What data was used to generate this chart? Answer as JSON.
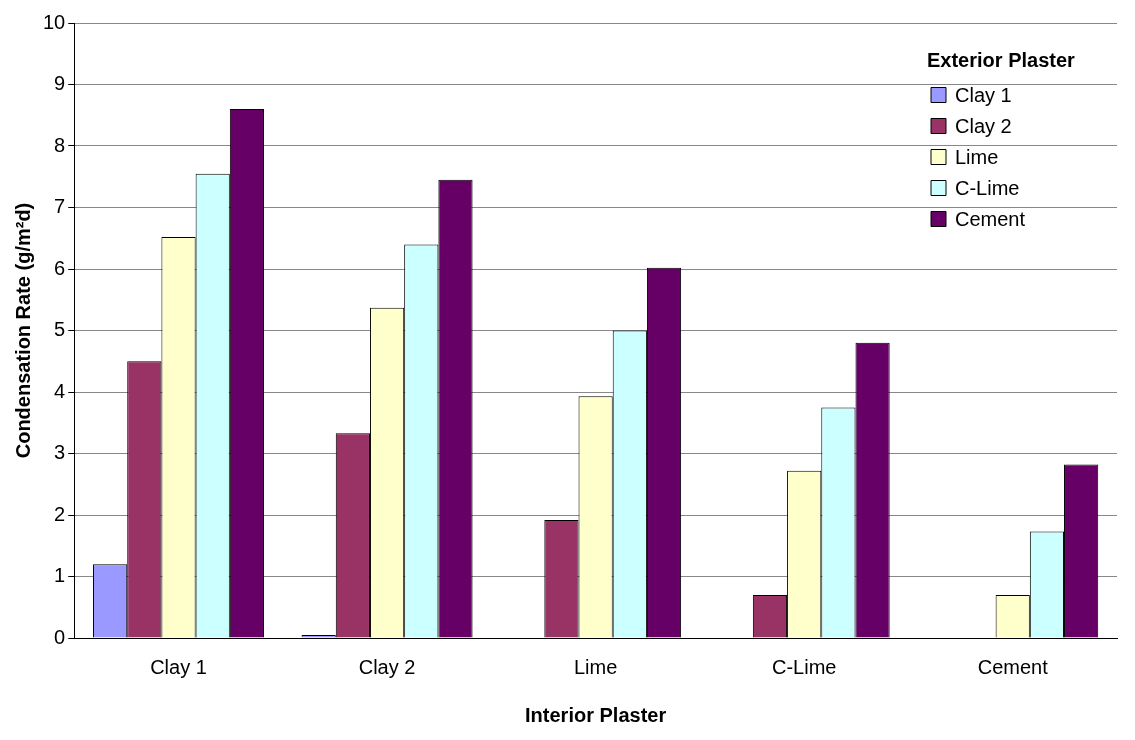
{
  "chart_data": {
    "type": "bar",
    "xlabel": "Interior Plaster",
    "ylabel": "Condensation Rate (g/m²d)",
    "legend_title": "Exterior Plaster",
    "categories": [
      "Clay 1",
      "Clay 2",
      "Lime",
      "C-Lime",
      "Cement"
    ],
    "series": [
      {
        "name": "Clay 1",
        "color": "#9999ff",
        "values": [
          1.2,
          0.05,
          0,
          0,
          0
        ]
      },
      {
        "name": "Clay 2",
        "color": "#993366",
        "values": [
          4.5,
          3.33,
          1.92,
          0.7,
          0
        ]
      },
      {
        "name": "Lime",
        "color": "#ffffcc",
        "values": [
          6.52,
          5.37,
          3.93,
          2.72,
          0.7
        ]
      },
      {
        "name": "C-Lime",
        "color": "#ccffff",
        "values": [
          7.55,
          6.4,
          5.0,
          3.75,
          1.73
        ]
      },
      {
        "name": "Cement",
        "color": "#660066",
        "values": [
          8.6,
          7.45,
          6.02,
          4.8,
          2.82
        ]
      }
    ],
    "ylim": [
      0,
      10
    ],
    "yticks": [
      0,
      1,
      2,
      3,
      4,
      5,
      6,
      7,
      8,
      9,
      10
    ],
    "grid": "y",
    "legend": "top right"
  }
}
